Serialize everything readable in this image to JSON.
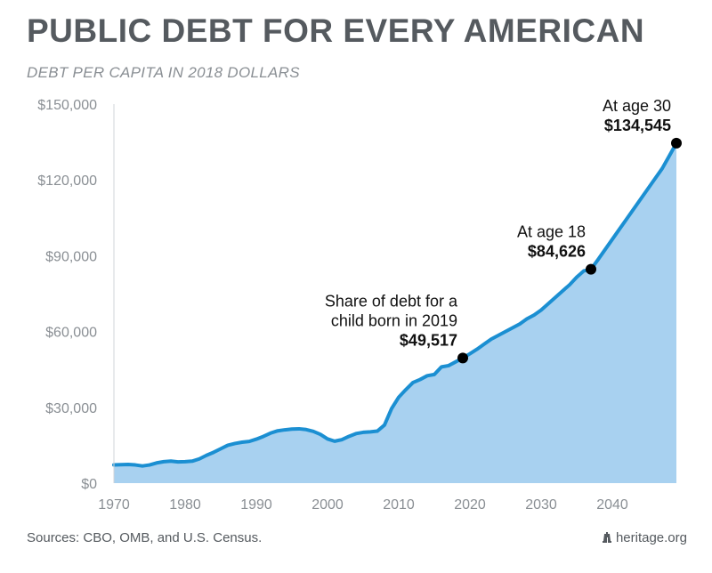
{
  "title": "PUBLIC DEBT FOR EVERY AMERICAN",
  "subtitle": "DEBT PER CAPITA IN 2018 DOLLARS",
  "footer": {
    "sources": "Sources: CBO, OMB, and U.S. Census.",
    "credit": "heritage.org",
    "credit_icon": "liberty-bell-icon"
  },
  "colors": {
    "area_fill": "#a8d1f0",
    "line": "#1b8fd2",
    "marker": "#000000",
    "axis_text": "#8a8f94",
    "title": "#555a5f"
  },
  "chart_data": {
    "type": "area",
    "title": "PUBLIC DEBT FOR EVERY AMERICAN",
    "subtitle": "DEBT PER CAPITA IN 2018 DOLLARS",
    "xlabel": "",
    "ylabel": "",
    "xlim": [
      1970,
      2049
    ],
    "ylim": [
      0,
      150000
    ],
    "grid": false,
    "x_ticks": [
      1970,
      1980,
      1990,
      2000,
      2010,
      2020,
      2030,
      2040
    ],
    "y_ticks": [
      0,
      30000,
      60000,
      90000,
      120000,
      150000
    ],
    "y_tick_labels": [
      "$0",
      "$30,000",
      "$60,000",
      "$90,000",
      "$120,000",
      "$150,000"
    ],
    "series": [
      {
        "x": [
          1970,
          1971,
          1972,
          1973,
          1974,
          1975,
          1976,
          1977,
          1978,
          1979,
          1980,
          1981,
          1982,
          1983,
          1984,
          1985,
          1986,
          1987,
          1988,
          1989,
          1990,
          1991,
          1992,
          1993,
          1994,
          1995,
          1996,
          1997,
          1998,
          1999,
          2000,
          2001,
          2002,
          2003,
          2004,
          2005,
          2006,
          2007,
          2008,
          2009,
          2010,
          2011,
          2012,
          2013,
          2014,
          2015,
          2016,
          2017,
          2018,
          2019,
          2020,
          2021,
          2022,
          2023,
          2024,
          2025,
          2026,
          2027,
          2028,
          2029,
          2030,
          2031,
          2032,
          2033,
          2034,
          2035,
          2036,
          2037,
          2038,
          2039,
          2040,
          2041,
          2042,
          2043,
          2044,
          2045,
          2046,
          2047,
          2048,
          2049
        ],
        "values": [
          7200,
          7300,
          7400,
          7200,
          6800,
          7200,
          8000,
          8500,
          8700,
          8400,
          8500,
          8700,
          9600,
          11000,
          12200,
          13600,
          15000,
          15700,
          16200,
          16500,
          17400,
          18500,
          19800,
          20700,
          21100,
          21400,
          21500,
          21200,
          20500,
          19300,
          17500,
          16600,
          17200,
          18500,
          19600,
          20100,
          20300,
          20600,
          23000,
          29500,
          34000,
          37000,
          39800,
          41000,
          42500,
          43000,
          46000,
          46500,
          48000,
          49517,
          51200,
          53000,
          55000,
          57000,
          58500,
          60000,
          61500,
          63000,
          65000,
          66500,
          68500,
          71000,
          73500,
          76000,
          78500,
          81500,
          84000,
          84626,
          88500,
          92500,
          96500,
          100500,
          104500,
          108500,
          112500,
          116500,
          120500,
          124500,
          129500,
          134545
        ]
      }
    ],
    "annotations": [
      {
        "x": 2019,
        "y": 49517,
        "lines": [
          "Share of debt for a",
          "child born in 2019"
        ],
        "value": "$49,517"
      },
      {
        "x": 2037,
        "y": 84626,
        "lines": [
          "At age 18"
        ],
        "value": "$84,626"
      },
      {
        "x": 2049,
        "y": 134545,
        "lines": [
          "At age 30"
        ],
        "value": "$134,545"
      }
    ]
  }
}
